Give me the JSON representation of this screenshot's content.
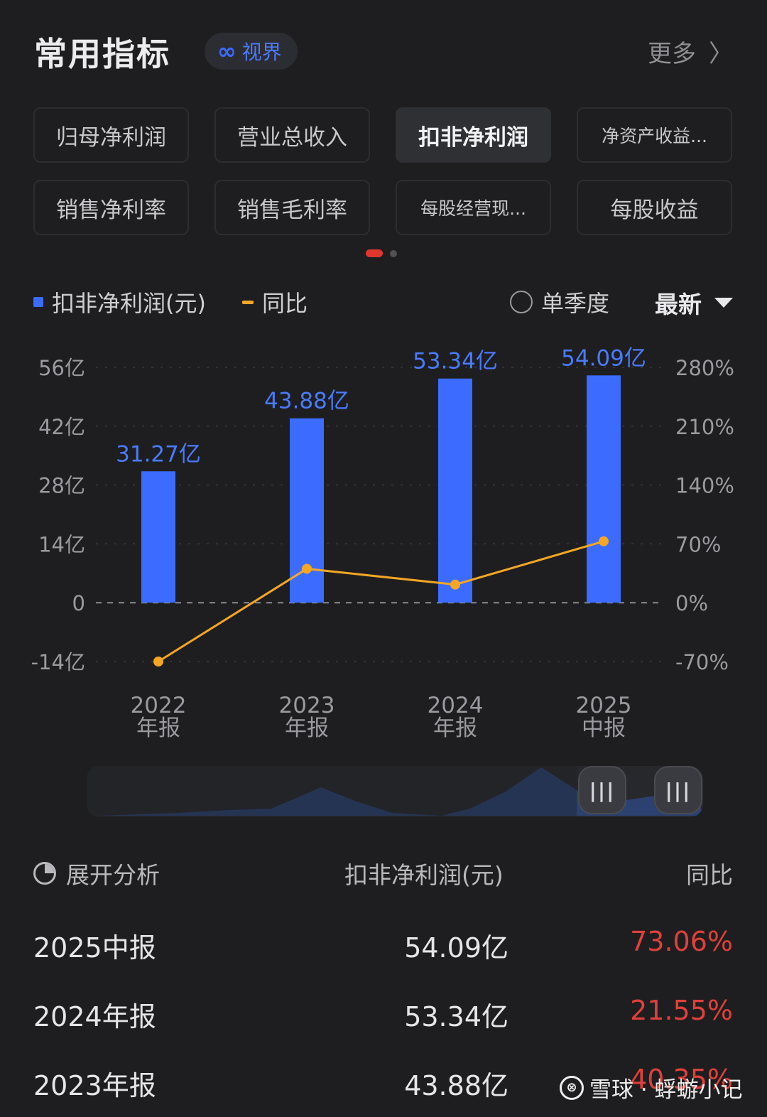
{
  "header": {
    "title": "常用指标",
    "brand": "视界",
    "more": "更多"
  },
  "chips": [
    {
      "label": "归母净利润",
      "active": false
    },
    {
      "label": "营业总收入",
      "active": false
    },
    {
      "label": "扣非净利润",
      "active": true
    },
    {
      "label": "净资产收益...",
      "active": false
    },
    {
      "label": "销售净利率",
      "active": false
    },
    {
      "label": "销售毛利率",
      "active": false
    },
    {
      "label": "每股经营现...",
      "active": false
    },
    {
      "label": "每股收益",
      "active": false
    }
  ],
  "legend": {
    "series_bar": "扣非净利润(元)",
    "series_line": "同比",
    "single_quarter": "单季度",
    "selector": "最新"
  },
  "colors": {
    "bar": "#3b6cff",
    "line": "#f5a623",
    "negative_red": "#e0403a",
    "accent_dot": "#e0362d"
  },
  "chart_data": {
    "type": "bar",
    "categories": [
      "2022\n年报",
      "2023\n年报",
      "2024\n年报",
      "2025\n中报"
    ],
    "series": [
      {
        "name": "扣非净利润(元)",
        "type": "bar",
        "values": [
          31.27,
          43.88,
          53.34,
          54.09
        ],
        "labels": [
          "31.27亿",
          "43.88亿",
          "53.34亿",
          "54.09亿"
        ]
      },
      {
        "name": "同比",
        "type": "line",
        "values": [
          -70,
          40.35,
          21.55,
          73.06
        ]
      }
    ],
    "y_left": {
      "ticks": [
        "56亿",
        "42亿",
        "28亿",
        "14亿",
        "0",
        "-14亿"
      ],
      "values": [
        56,
        42,
        28,
        14,
        0,
        -14
      ],
      "range": [
        -14,
        56
      ]
    },
    "y_right": {
      "ticks": [
        "280%",
        "210%",
        "140%",
        "70%",
        "0%",
        "-70%"
      ],
      "values": [
        280,
        210,
        140,
        70,
        0,
        -70
      ],
      "range": [
        -70,
        280
      ]
    },
    "grid": true
  },
  "table": {
    "col_1": "展开分析",
    "col_2": "扣非净利润(元)",
    "col_3": "同比",
    "rows": [
      {
        "period": "2025中报",
        "value": "54.09亿",
        "yoy": "73.06%"
      },
      {
        "period": "2024年报",
        "value": "53.34亿",
        "yoy": "21.55%"
      },
      {
        "period": "2023年报",
        "value": "43.88亿",
        "yoy": "40.35%"
      }
    ]
  },
  "watermark": "雪球 · 蜉蝣小记"
}
